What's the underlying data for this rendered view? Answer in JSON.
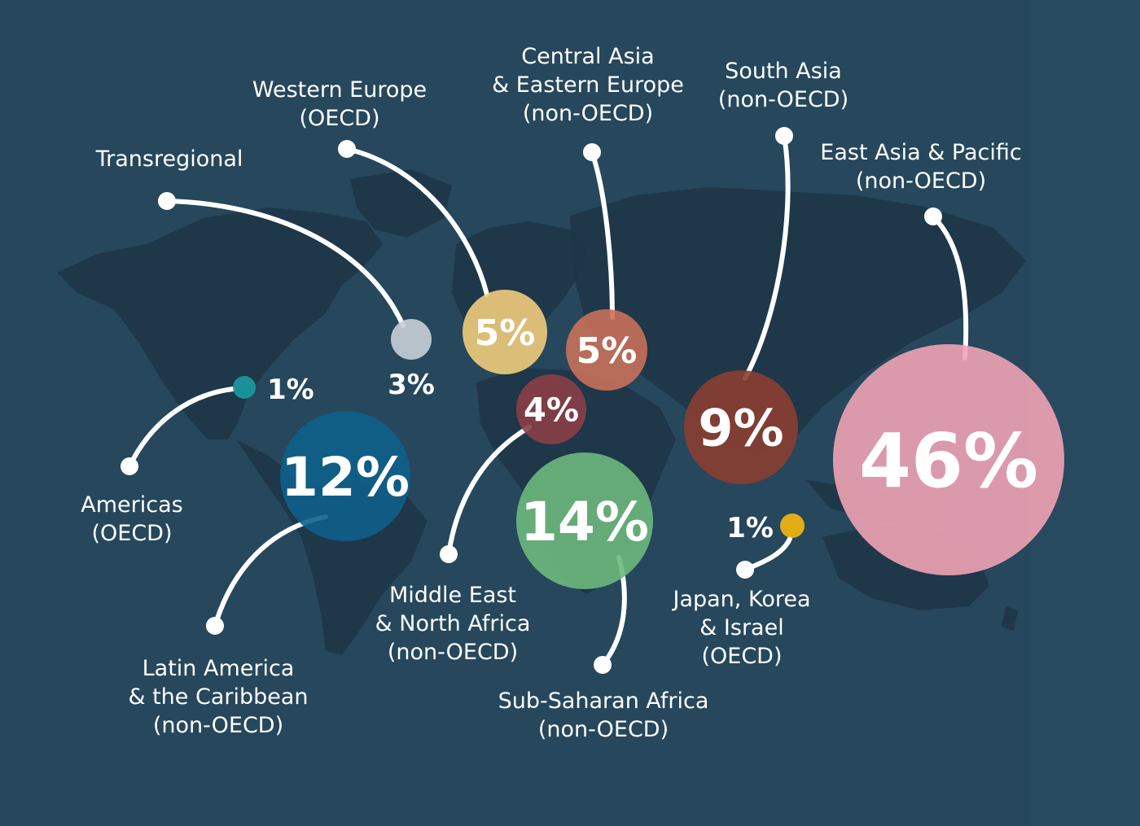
{
  "colors": {
    "background": "#26475c",
    "land": "#1d3545",
    "leader": "#ffffff"
  },
  "regions": [
    {
      "id": "transregional",
      "label": [
        "Transregional"
      ],
      "value": 3,
      "display": "3%",
      "color": "#c9cfd6"
    },
    {
      "id": "western-europe",
      "label": [
        "Western Europe",
        "(OECD)"
      ],
      "value": 5,
      "display": "5%",
      "color": "#f0cc7c"
    },
    {
      "id": "central-asia-eastern-europe",
      "label": [
        "Central Asia",
        "& Eastern Europe",
        "(non-OECD)"
      ],
      "value": 5,
      "display": "5%",
      "color": "#c9705a"
    },
    {
      "id": "south-asia",
      "label": [
        "South Asia",
        "(non-OECD)"
      ],
      "value": 9,
      "display": "9%",
      "color": "#8a3e31"
    },
    {
      "id": "east-asia-pacific",
      "label": [
        "East Asia & Pacific",
        "(non-OECD)"
      ],
      "value": 46,
      "display": "46%",
      "color": "#f0a3b4"
    },
    {
      "id": "americas",
      "label": [
        "Americas",
        "(OECD)"
      ],
      "value": 1,
      "display": "1%",
      "color": "#1a9aa0"
    },
    {
      "id": "latin-america-caribbean",
      "label": [
        "Latin America",
        "& the Caribbean",
        "(non-OECD)"
      ],
      "value": 12,
      "display": "12%",
      "color": "#0e5f8a"
    },
    {
      "id": "middle-east-north-africa",
      "label": [
        "Middle East",
        "& North Africa",
        "(non-OECD)"
      ],
      "value": 4,
      "display": "4%",
      "color": "#8a3f47"
    },
    {
      "id": "sub-saharan-africa",
      "label": [
        "Sub-Saharan Africa",
        "(non-OECD)"
      ],
      "value": 14,
      "display": "14%",
      "color": "#6db87c"
    },
    {
      "id": "japan-korea-israel",
      "label": [
        "Japan, Korea",
        "& Israel",
        "(OECD)"
      ],
      "value": 1,
      "display": "1%",
      "color": "#f5b80f"
    }
  ]
}
